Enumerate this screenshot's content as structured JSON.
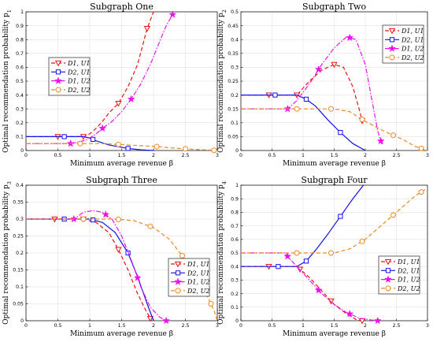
{
  "colors": {
    "D1U1": "#ee1111",
    "D2U1": "#1111ee",
    "D1U2": "#ee11ee",
    "D2U2": "#ee8822"
  },
  "series_style": [
    {
      "key": "D1U1",
      "marker": "triangle-down-icon",
      "dash": "5,3"
    },
    {
      "key": "D2U1",
      "marker": "square-icon",
      "dash": ""
    },
    {
      "key": "D1U2",
      "marker": "star-icon",
      "dash": "6,2,1.5,2"
    },
    {
      "key": "D2U2",
      "marker": "circle-icon",
      "dash": "5,3"
    }
  ],
  "chart_data": [
    {
      "type": "line",
      "title": "Subgraph One",
      "xlabel": "Minimum average revenue β",
      "ylabel": "Optimal recommendation probability p*1",
      "ylabel_base": "Optimal recommendation probability p",
      "ylabel_sub": "1",
      "xlim": [
        0,
        3
      ],
      "ylim": [
        0,
        1
      ],
      "xticks": [
        "0",
        "0.5",
        "1",
        "1.5",
        "2",
        "2.5",
        "3"
      ],
      "yticks": [
        "0",
        "0.1",
        "0.2",
        "0.3",
        "0.4",
        "0.5",
        "0.6",
        "0.7",
        "0.8",
        "0.9",
        "1"
      ],
      "grid": true,
      "legend": "left-middle",
      "legend_entries": [
        "D1, U1",
        "D2, U1",
        "D1, U2",
        "D2, U2"
      ],
      "series": [
        {
          "name": "D1, U1",
          "x": [
            0,
            0.5,
            0.9,
            1.0,
            1.1,
            1.2,
            1.3,
            1.45,
            1.6,
            1.75,
            1.9,
            2.0
          ],
          "y": [
            0.1,
            0.1,
            0.1,
            0.12,
            0.16,
            0.21,
            0.27,
            0.34,
            0.46,
            0.62,
            0.88,
            1.0
          ],
          "markers_x": [
            0.5,
            0.9,
            1.45,
            1.9
          ]
        },
        {
          "name": "D2, U1",
          "x": [
            0,
            0.5,
            0.9,
            1.0,
            1.1,
            1.3,
            1.6,
            1.8,
            2.0
          ],
          "y": [
            0.1,
            0.1,
            0.1,
            0.09,
            0.07,
            0.04,
            0.015,
            0.005,
            0
          ],
          "markers_x": [
            0.6,
            1.05,
            1.6
          ]
        },
        {
          "name": "D1, U2",
          "x": [
            0,
            0.5,
            0.7,
            0.9,
            1.0,
            1.1,
            1.2,
            1.35,
            1.5,
            1.65,
            1.8,
            1.95,
            2.1,
            2.2,
            2.3
          ],
          "y": [
            0.05,
            0.05,
            0.05,
            0.07,
            0.09,
            0.12,
            0.16,
            0.21,
            0.28,
            0.37,
            0.48,
            0.62,
            0.79,
            0.9,
            0.98
          ],
          "markers_x": [
            0.7,
            1.2,
            1.65,
            2.3
          ]
        },
        {
          "name": "D2, U2",
          "x": [
            0,
            0.5,
            0.8,
            1.2,
            1.6,
            2.0,
            2.4,
            2.7,
            2.9,
            3.0
          ],
          "y": [
            0.05,
            0.05,
            0.05,
            0.05,
            0.04,
            0.03,
            0.015,
            0.007,
            0.003,
            0
          ],
          "markers_x": [
            0.85,
            1.45,
            2.05,
            2.5,
            2.95
          ]
        }
      ]
    },
    {
      "type": "line",
      "title": "Subgraph Two",
      "xlabel": "Minimum average revenue β",
      "ylabel": "Optimal recommendation probability p*2",
      "ylabel_base": "Optimal recommendation probability p",
      "ylabel_sub": "2",
      "xlim": [
        0,
        3
      ],
      "ylim": [
        0,
        0.5
      ],
      "xticks": [
        "0",
        "0.5",
        "1",
        "1.5",
        "2",
        "2.5",
        "3"
      ],
      "yticks": [
        "0",
        "0.05",
        "0.1",
        "0.15",
        "0.2",
        "0.25",
        "0.3",
        "0.35",
        "0.4",
        "0.45",
        "0.5"
      ],
      "grid": true,
      "legend": "top-right",
      "legend_entries": [
        "D1, U1",
        "D2, U1",
        "D1, U2",
        "D2, U2"
      ],
      "series": [
        {
          "name": "D1, U1",
          "x": [
            0,
            0.5,
            0.9,
            1.1,
            1.3,
            1.5,
            1.65,
            1.8,
            1.9,
            1.97
          ],
          "y": [
            0.2,
            0.2,
            0.2,
            0.25,
            0.29,
            0.31,
            0.3,
            0.23,
            0.15,
            0.09
          ],
          "markers_x": [
            0.45,
            0.9,
            1.5,
            1.95
          ]
        },
        {
          "name": "D2, U1",
          "x": [
            0,
            0.5,
            0.9,
            1.05,
            1.2,
            1.4,
            1.6,
            1.8,
            2.0
          ],
          "y": [
            0.2,
            0.2,
            0.2,
            0.185,
            0.16,
            0.11,
            0.065,
            0.025,
            0
          ],
          "markers_x": [
            0.55,
            1.05,
            1.6
          ]
        },
        {
          "name": "D1, U2",
          "x": [
            0,
            0.5,
            0.75,
            0.9,
            1.1,
            1.3,
            1.5,
            1.7,
            1.85,
            2.0,
            2.1,
            2.2,
            2.27
          ],
          "y": [
            0.15,
            0.15,
            0.15,
            0.18,
            0.24,
            0.31,
            0.37,
            0.41,
            0.4,
            0.31,
            0.19,
            0.07,
            0.02
          ],
          "markers_x": [
            0.75,
            1.25,
            1.75,
            2.25
          ]
        },
        {
          "name": "D2, U2",
          "x": [
            0,
            0.5,
            0.85,
            1.2,
            1.5,
            1.75,
            2.0,
            2.3,
            2.6,
            2.8,
            3.0
          ],
          "y": [
            0.15,
            0.15,
            0.15,
            0.15,
            0.15,
            0.14,
            0.105,
            0.07,
            0.04,
            0.015,
            0
          ],
          "markers_x": [
            0.9,
            1.45,
            1.95,
            2.45,
            2.9
          ]
        }
      ]
    },
    {
      "type": "line",
      "title": "Subgraph Three",
      "xlabel": "Minimum average revenue β",
      "ylabel": "Optimal recommendation probability p*3",
      "ylabel_base": "Optimal recommendation probability p",
      "ylabel_sub": "3",
      "xlim": [
        0,
        3
      ],
      "ylim": [
        0,
        0.4
      ],
      "xticks": [
        "0",
        "0.5",
        "1",
        "1.5",
        "2",
        "2.5",
        "3"
      ],
      "yticks": [
        "0",
        "0.05",
        "0.1",
        "0.15",
        "0.2",
        "0.25",
        "0.3",
        "0.35",
        "0.4"
      ],
      "grid": true,
      "legend": "bottom-right",
      "legend_entries": [
        "D1, U1",
        "D2, U1",
        "D1, U2",
        "D2, U2"
      ],
      "series": [
        {
          "name": "D1, U1",
          "x": [
            0,
            0.5,
            0.9,
            1.1,
            1.3,
            1.45,
            1.6,
            1.75,
            1.88,
            1.97
          ],
          "y": [
            0.3,
            0.3,
            0.3,
            0.29,
            0.26,
            0.21,
            0.15,
            0.08,
            0.03,
            0
          ],
          "markers_x": [
            0.45,
            0.9,
            1.45,
            1.95
          ]
        },
        {
          "name": "D2, U1",
          "x": [
            0,
            0.5,
            1.0,
            1.2,
            1.4,
            1.6,
            1.75,
            1.9,
            2.0
          ],
          "y": [
            0.3,
            0.3,
            0.3,
            0.29,
            0.26,
            0.2,
            0.13,
            0.05,
            0
          ],
          "markers_x": [
            0.6,
            1.05,
            1.6
          ]
        },
        {
          "name": "D1, U2",
          "x": [
            0,
            0.5,
            0.75,
            0.9,
            1.05,
            1.2,
            1.35,
            1.5,
            1.65,
            1.8,
            1.95,
            2.1,
            2.2
          ],
          "y": [
            0.3,
            0.3,
            0.3,
            0.32,
            0.325,
            0.32,
            0.3,
            0.25,
            0.18,
            0.1,
            0.04,
            0.01,
            0
          ],
          "markers_x": [
            0.75,
            1.25,
            1.75,
            2.2
          ]
        },
        {
          "name": "D2, U2",
          "x": [
            0,
            0.5,
            1.0,
            1.4,
            1.7,
            2.0,
            2.25,
            2.5,
            2.7,
            2.85,
            2.95,
            3.0
          ],
          "y": [
            0.3,
            0.3,
            0.3,
            0.3,
            0.295,
            0.275,
            0.24,
            0.18,
            0.12,
            0.07,
            0.03,
            0
          ],
          "markers_x": [
            0.9,
            1.45,
            1.95,
            2.45,
            2.9
          ]
        }
      ]
    },
    {
      "type": "line",
      "title": "Subgraph Four",
      "xlabel": "Minimum average revenue β",
      "ylabel": "Optimal recommendation probability p*4",
      "ylabel_base": "Optimal recommendation probability p",
      "ylabel_sub": "4",
      "xlim": [
        0,
        3
      ],
      "ylim": [
        0,
        1
      ],
      "xticks": [
        "0",
        "0.5",
        "1",
        "1.5",
        "2",
        "2.5",
        "3"
      ],
      "yticks": [
        "0",
        "0.1",
        "0.2",
        "0.3",
        "0.4",
        "0.5",
        "0.6",
        "0.7",
        "0.8",
        "0.9",
        "1"
      ],
      "grid": true,
      "legend": "bottom-right",
      "legend_entries": [
        "D1, U1",
        "D2, U1",
        "D1, U2",
        "D2, U2"
      ],
      "series": [
        {
          "name": "D1, U1",
          "x": [
            0,
            0.5,
            0.9,
            1.1,
            1.3,
            1.5,
            1.7,
            1.85,
            1.95
          ],
          "y": [
            0.4,
            0.4,
            0.4,
            0.32,
            0.22,
            0.12,
            0.05,
            0.01,
            0
          ],
          "markers_x": [
            0.45,
            0.95,
            1.45,
            1.95
          ]
        },
        {
          "name": "D2, U1",
          "x": [
            0,
            0.5,
            0.9,
            1.05,
            1.2,
            1.4,
            1.6,
            1.8,
            1.97
          ],
          "y": [
            0.4,
            0.4,
            0.4,
            0.44,
            0.52,
            0.64,
            0.77,
            0.9,
            1.0
          ],
          "markers_x": [
            0.6,
            1.05,
            1.6
          ]
        },
        {
          "name": "D1, U2",
          "x": [
            0,
            0.5,
            0.7,
            0.9,
            1.1,
            1.3,
            1.5,
            1.7,
            1.9,
            2.1,
            2.2
          ],
          "y": [
            0.5,
            0.5,
            0.5,
            0.4,
            0.3,
            0.2,
            0.12,
            0.06,
            0.02,
            0.005,
            0
          ],
          "markers_x": [
            0.75,
            1.25,
            1.75,
            2.2
          ]
        },
        {
          "name": "D2, U2",
          "x": [
            0,
            0.5,
            0.9,
            1.2,
            1.5,
            1.75,
            2.0,
            2.2,
            2.4,
            2.6,
            2.8,
            3.0
          ],
          "y": [
            0.5,
            0.5,
            0.5,
            0.5,
            0.5,
            0.53,
            0.6,
            0.68,
            0.76,
            0.84,
            0.92,
            0.98
          ],
          "markers_x": [
            0.9,
            1.45,
            1.95,
            2.45,
            2.9
          ]
        }
      ]
    }
  ]
}
